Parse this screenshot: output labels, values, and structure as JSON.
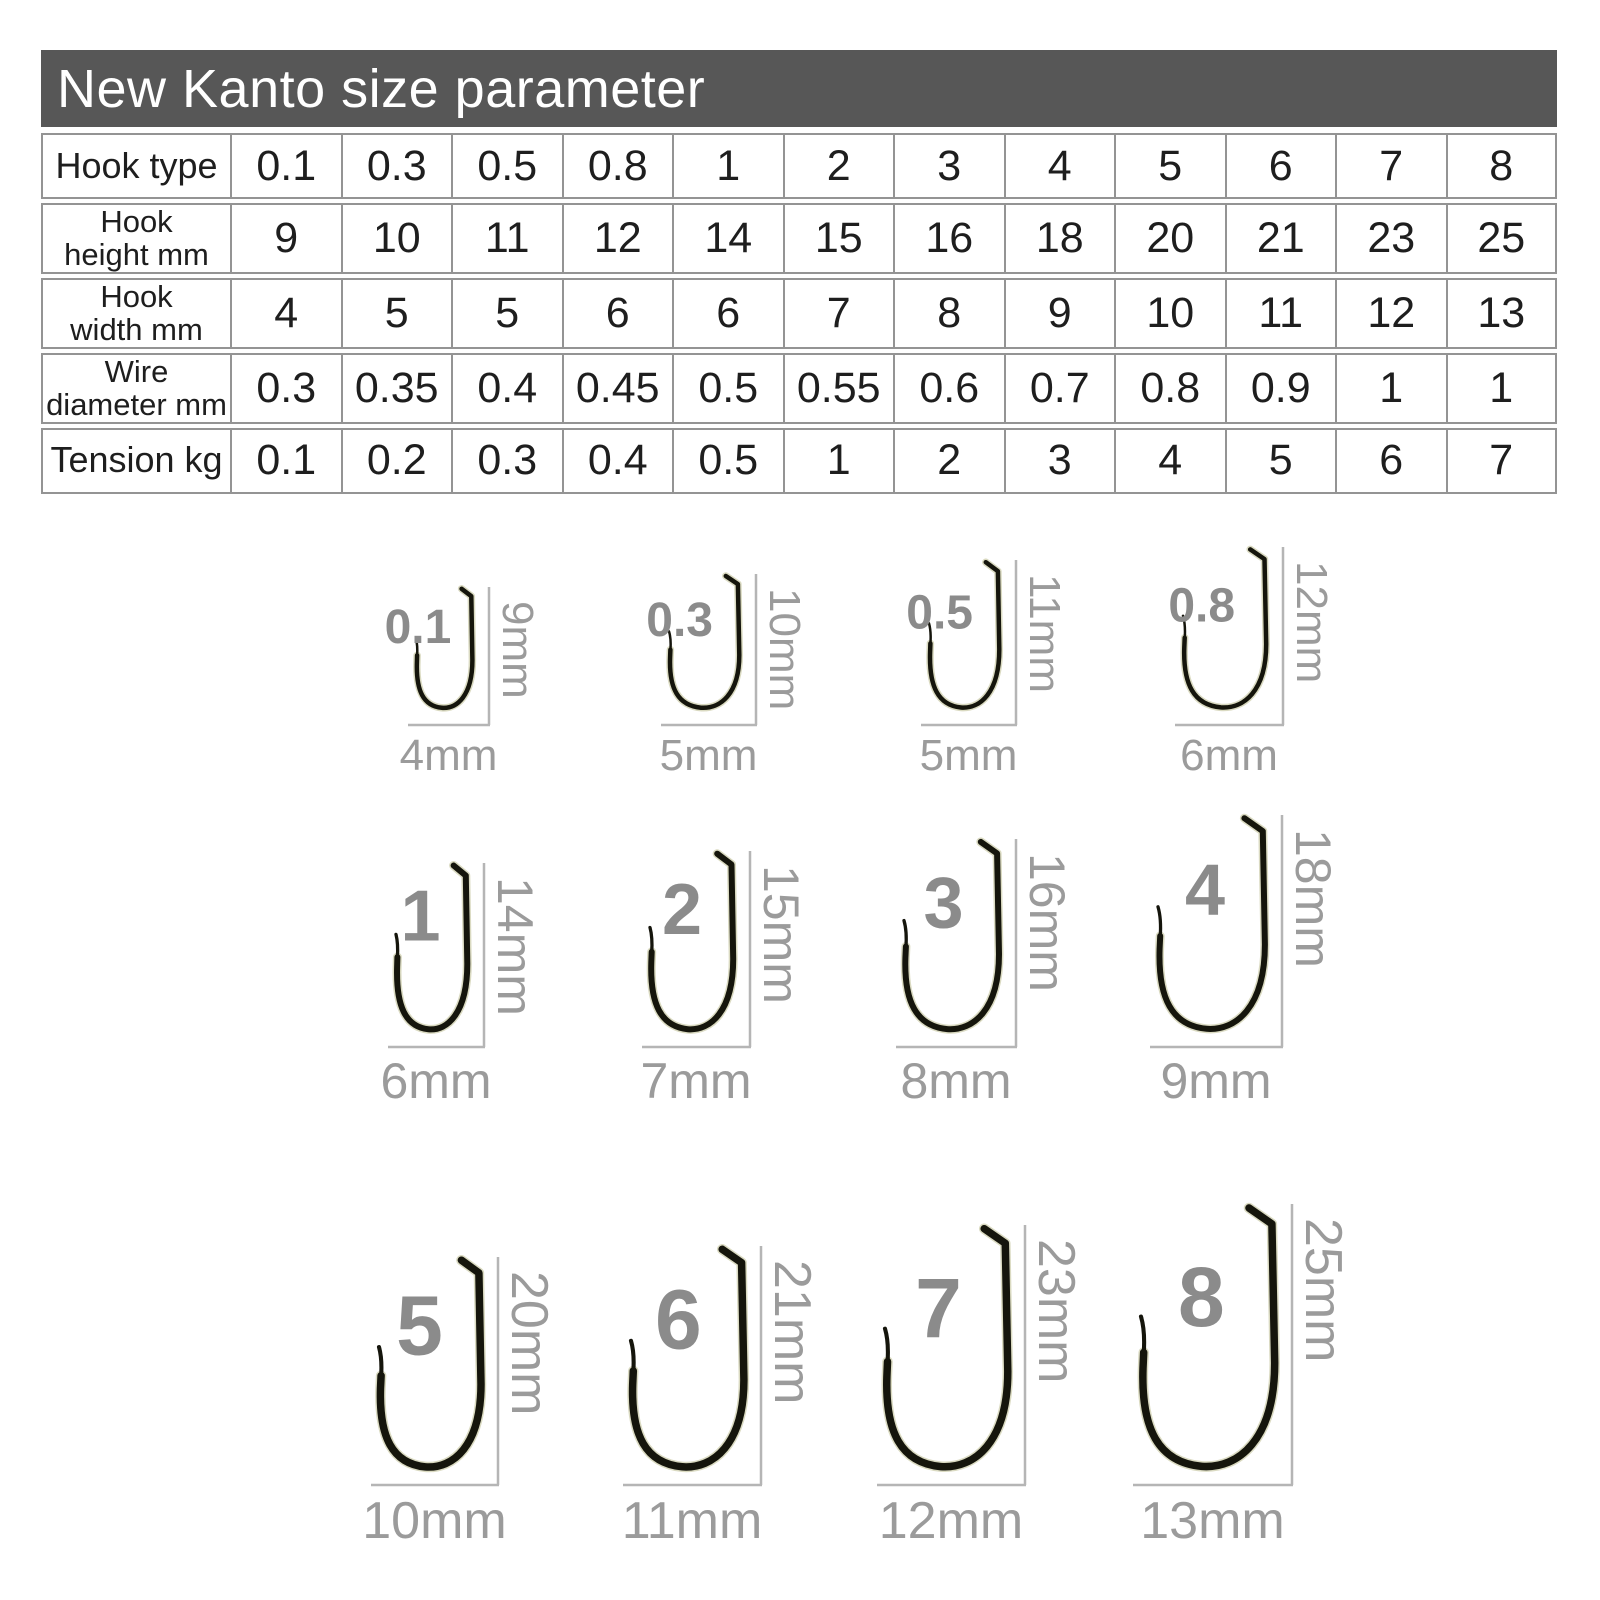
{
  "title": "New Kanto size parameter",
  "table": {
    "rows": [
      {
        "label": [
          "Hook type"
        ],
        "values": [
          "0.1",
          "0.3",
          "0.5",
          "0.8",
          "1",
          "2",
          "3",
          "4",
          "5",
          "6",
          "7",
          "8"
        ]
      },
      {
        "label": [
          "Hook",
          "height mm"
        ],
        "values": [
          "9",
          "10",
          "11",
          "12",
          "14",
          "15",
          "16",
          "18",
          "20",
          "21",
          "23",
          "25"
        ]
      },
      {
        "label": [
          "Hook",
          "width mm"
        ],
        "values": [
          "4",
          "5",
          "5",
          "6",
          "6",
          "7",
          "8",
          "9",
          "10",
          "11",
          "12",
          "13"
        ]
      },
      {
        "label": [
          "Wire",
          "diameter mm"
        ],
        "values": [
          "0.3",
          "0.35",
          "0.4",
          "0.45",
          "0.5",
          "0.55",
          "0.6",
          "0.7",
          "0.8",
          "0.9",
          "1",
          "1"
        ]
      },
      {
        "label": [
          "Tension kg"
        ],
        "values": [
          "0.1",
          "0.2",
          "0.3",
          "0.4",
          "0.5",
          "1",
          "2",
          "3",
          "4",
          "5",
          "6",
          "7"
        ]
      }
    ]
  },
  "hook_diagrams": {
    "rows": [
      {
        "hooks": [
          {
            "type": "0.1",
            "height": "9mm",
            "width": "4mm"
          },
          {
            "type": "0.3",
            "height": "10mm",
            "width": "5mm"
          },
          {
            "type": "0.5",
            "height": "11mm",
            "width": "5mm"
          },
          {
            "type": "0.8",
            "height": "12mm",
            "width": "6mm"
          }
        ]
      },
      {
        "hooks": [
          {
            "type": "1",
            "height": "14mm",
            "width": "6mm"
          },
          {
            "type": "2",
            "height": "15mm",
            "width": "7mm"
          },
          {
            "type": "3",
            "height": "16mm",
            "width": "8mm"
          },
          {
            "type": "4",
            "height": "18mm",
            "width": "9mm"
          }
        ]
      },
      {
        "hooks": [
          {
            "type": "5",
            "height": "20mm",
            "width": "10mm"
          },
          {
            "type": "6",
            "height": "21mm",
            "width": "11mm"
          },
          {
            "type": "7",
            "height": "23mm",
            "width": "12mm"
          },
          {
            "type": "8",
            "height": "25mm",
            "width": "13mm"
          }
        ]
      }
    ]
  },
  "colors": {
    "header_bg": "#575757",
    "header_text": "#ffffff",
    "table_border": "#949494",
    "table_text": "#1e1e1e",
    "hook": "#15150c",
    "hook_glow": "#7a7a22",
    "measure_line": "#b5b5b5",
    "type_number": "#8b8b8b",
    "mm_text": "#9b9b9b"
  }
}
